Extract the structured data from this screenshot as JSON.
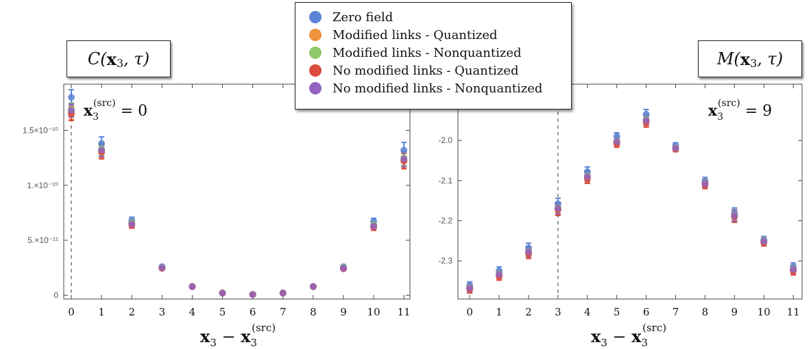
{
  "chart_data": [
    {
      "type": "scatter",
      "title": "C(x3, τ)",
      "annotation": "x3(src) = 0",
      "xlabel": "x3 − x3(src)",
      "source_line_x": 0,
      "xlim": [
        -0.25,
        11.2
      ],
      "ylim": [
        -3.5e-12,
        1.92e-10
      ],
      "xticks": [
        0,
        1,
        2,
        3,
        4,
        5,
        6,
        7,
        8,
        9,
        10,
        11
      ],
      "yticks": [
        {
          "value": 0,
          "label": "0"
        },
        {
          "value": 5e-11,
          "label": "5.×10⁻¹¹"
        },
        {
          "value": 1e-10,
          "label": "1.×10⁻¹⁰"
        },
        {
          "value": 1.5e-10,
          "label": "1.5×10⁻¹⁰"
        }
      ],
      "series": [
        {
          "name": "Zero field",
          "color": "#5b84d6",
          "x": [
            0,
            1,
            2,
            3,
            4,
            5,
            6,
            7,
            8,
            9,
            10,
            11
          ],
          "y": [
            1.8e-10,
            1.38e-10,
            6.8e-11,
            2.6e-11,
            8e-12,
            2e-12,
            6e-13,
            2e-12,
            8e-12,
            2.6e-11,
            6.7e-11,
            1.32e-10
          ],
          "err": [
            7e-12,
            6e-12,
            3e-12,
            1e-12,
            6e-13,
            3e-13,
            2e-13,
            3e-13,
            6e-13,
            1e-12,
            3e-12,
            7e-12
          ]
        },
        {
          "name": "Modified links - Quantized",
          "color": "#f0923e",
          "x": [
            0,
            1,
            2,
            3,
            4,
            5,
            6,
            7,
            8,
            9,
            10,
            11
          ],
          "y": [
            1.66e-10,
            1.31e-10,
            6.5e-11,
            2.45e-11,
            7.8e-12,
            2e-12,
            6e-13,
            2e-12,
            7.8e-12,
            2.45e-11,
            6.3e-11,
            1.23e-10
          ],
          "err": [
            6e-12,
            6e-12,
            3e-12,
            1e-12,
            6e-13,
            3e-13,
            2e-13,
            3e-13,
            6e-13,
            1e-12,
            3e-12,
            7e-12
          ]
        },
        {
          "name": "Modified links - Nonquantized",
          "color": "#8fc96b",
          "x": [
            0,
            1,
            2,
            3,
            4,
            5,
            6,
            7,
            8,
            9,
            10,
            11
          ],
          "y": [
            1.69e-10,
            1.33e-10,
            6.6e-11,
            2.5e-11,
            7.9e-12,
            2e-12,
            6e-13,
            2e-12,
            7.9e-12,
            2.5e-11,
            6.4e-11,
            1.25e-10
          ],
          "err": [
            6e-12,
            6e-12,
            3e-12,
            1e-12,
            6e-13,
            3e-13,
            2e-13,
            3e-13,
            6e-13,
            1e-12,
            3e-12,
            7e-12
          ]
        },
        {
          "name": "No modified links - Quantized",
          "color": "#db4a3c",
          "x": [
            0,
            1,
            2,
            3,
            4,
            5,
            6,
            7,
            8,
            9,
            10,
            11
          ],
          "y": [
            1.65e-10,
            1.3e-10,
            6.4e-11,
            2.45e-11,
            7.8e-12,
            2e-12,
            6e-13,
            2e-12,
            7.8e-12,
            2.4e-11,
            6.2e-11,
            1.22e-10
          ],
          "err": [
            6e-12,
            6e-12,
            3e-12,
            1e-12,
            6e-13,
            3e-13,
            2e-13,
            3e-13,
            6e-13,
            1e-12,
            3e-12,
            7e-12
          ]
        },
        {
          "name": "No modified links - Nonquantized",
          "color": "#9264c0",
          "x": [
            0,
            1,
            2,
            3,
            4,
            5,
            6,
            7,
            8,
            9,
            10,
            11
          ],
          "y": [
            1.68e-10,
            1.32e-10,
            6.5e-11,
            2.48e-11,
            7.9e-12,
            2e-12,
            6e-13,
            2e-12,
            7.9e-12,
            2.45e-11,
            6.3e-11,
            1.24e-10
          ],
          "err": [
            6e-12,
            6e-12,
            3e-12,
            1e-12,
            6e-13,
            3e-13,
            2e-13,
            3e-13,
            6e-13,
            1e-12,
            3e-12,
            7e-12
          ]
        }
      ]
    },
    {
      "type": "scatter",
      "title": "M(x3, τ)",
      "annotation": "x3(src) = 9",
      "xlabel": "x3 − x3(src)",
      "source_line_x": 3,
      "xlim": [
        -0.4,
        11.3
      ],
      "ylim": [
        -2.395,
        -1.86
      ],
      "xticks": [
        0,
        1,
        2,
        3,
        4,
        5,
        6,
        7,
        8,
        9,
        10,
        11
      ],
      "yticks": [
        {
          "value": -2.0,
          "label": "-2.0"
        },
        {
          "value": -2.1,
          "label": "-2.1"
        },
        {
          "value": -2.2,
          "label": "-2.2"
        },
        {
          "value": -2.3,
          "label": "-2.3"
        }
      ],
      "series": [
        {
          "name": "Zero field",
          "color": "#5b84d6",
          "x": [
            0,
            1,
            2,
            3,
            4,
            5,
            6,
            7,
            8,
            9,
            10,
            11
          ],
          "y": [
            -2.362,
            -2.325,
            -2.268,
            -2.158,
            -2.078,
            -1.99,
            -1.935,
            -2.012,
            -2.102,
            -2.182,
            -2.248,
            -2.315
          ],
          "err": [
            0.01,
            0.01,
            0.012,
            0.014,
            0.012,
            0.009,
            0.012,
            0.006,
            0.01,
            0.014,
            0.009,
            0.01
          ]
        },
        {
          "name": "Modified links - Quantized",
          "color": "#f0923e",
          "x": [
            0,
            1,
            2,
            3,
            4,
            5,
            6,
            7,
            8,
            9,
            10,
            11
          ],
          "y": [
            -2.368,
            -2.335,
            -2.279,
            -2.17,
            -2.092,
            -2.005,
            -1.952,
            -2.02,
            -2.108,
            -2.188,
            -2.252,
            -2.322
          ],
          "err": [
            0.01,
            0.01,
            0.012,
            0.014,
            0.012,
            0.009,
            0.012,
            0.006,
            0.01,
            0.014,
            0.009,
            0.01
          ]
        },
        {
          "name": "Modified links - Nonquantized",
          "color": "#8fc96b",
          "x": [
            0,
            1,
            2,
            3,
            4,
            5,
            6,
            7,
            8,
            9,
            10,
            11
          ],
          "y": [
            -2.366,
            -2.332,
            -2.276,
            -2.168,
            -2.088,
            -2.002,
            -1.948,
            -2.018,
            -2.106,
            -2.186,
            -2.25,
            -2.32
          ],
          "err": [
            0.01,
            0.01,
            0.012,
            0.014,
            0.012,
            0.009,
            0.012,
            0.006,
            0.01,
            0.014,
            0.009,
            0.01
          ]
        },
        {
          "name": "No modified links - Quantized",
          "color": "#db4a3c",
          "x": [
            0,
            1,
            2,
            3,
            4,
            5,
            6,
            7,
            8,
            9,
            10,
            11
          ],
          "y": [
            -2.37,
            -2.338,
            -2.282,
            -2.173,
            -2.095,
            -2.008,
            -1.955,
            -2.022,
            -2.11,
            -2.19,
            -2.254,
            -2.325
          ],
          "err": [
            0.01,
            0.01,
            0.012,
            0.014,
            0.012,
            0.009,
            0.012,
            0.006,
            0.01,
            0.014,
            0.009,
            0.01
          ]
        },
        {
          "name": "No modified links - Nonquantized",
          "color": "#9264c0",
          "x": [
            0,
            1,
            2,
            3,
            4,
            5,
            6,
            7,
            8,
            9,
            10,
            11
          ],
          "y": [
            -2.367,
            -2.333,
            -2.277,
            -2.169,
            -2.09,
            -2.003,
            -1.95,
            -2.019,
            -2.107,
            -2.187,
            -2.251,
            -2.321
          ],
          "err": [
            0.01,
            0.01,
            0.012,
            0.014,
            0.012,
            0.009,
            0.012,
            0.006,
            0.01,
            0.014,
            0.009,
            0.01
          ]
        }
      ]
    }
  ],
  "legend": [
    {
      "label": "Zero field",
      "color": "#5b84d6"
    },
    {
      "label": "Modified links - Quantized",
      "color": "#f0923e"
    },
    {
      "label": "Modified links - Nonquantized",
      "color": "#8fc96b"
    },
    {
      "label": "No modified links - Quantized",
      "color": "#db4a3c"
    },
    {
      "label": "No modified links - Nonquantized",
      "color": "#9264c0"
    }
  ]
}
